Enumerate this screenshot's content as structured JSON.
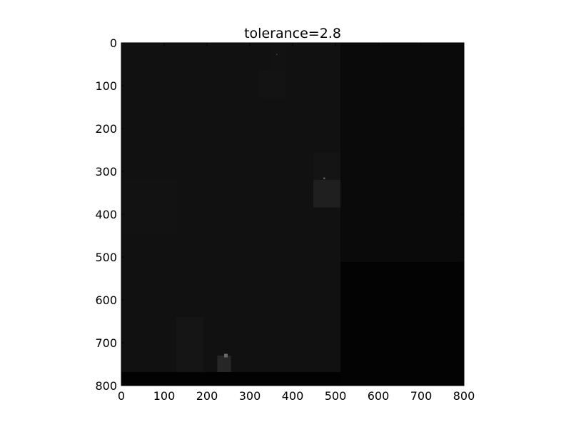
{
  "chart_data": {
    "type": "heatmap",
    "title": "tolerance=2.8",
    "xlabel": "",
    "ylabel": "",
    "xlim": [
      0,
      800
    ],
    "ylim": [
      800,
      0
    ],
    "x_ticks": [
      0,
      100,
      200,
      300,
      400,
      500,
      600,
      700,
      800
    ],
    "y_ticks": [
      0,
      100,
      200,
      300,
      400,
      500,
      600,
      700,
      800
    ],
    "x_tick_labels": [
      "0",
      "100",
      "200",
      "300",
      "400",
      "500",
      "600",
      "700",
      "800"
    ],
    "y_tick_labels": [
      "0",
      "100",
      "200",
      "300",
      "400",
      "500",
      "600",
      "700",
      "800"
    ],
    "colormap": "gray",
    "grid": false,
    "background_gray": "#111111",
    "regions": [
      {
        "name": "left-block",
        "x": [
          0,
          512
        ],
        "y": [
          0,
          768
        ],
        "color": "#111111"
      },
      {
        "name": "bottom-strip",
        "x": [
          0,
          512
        ],
        "y": [
          768,
          800
        ],
        "color": "#020202"
      },
      {
        "name": "upper-right-block",
        "x": [
          512,
          800
        ],
        "y": [
          0,
          512
        ],
        "color": "#0a0a0a"
      },
      {
        "name": "lower-right-block",
        "x": [
          512,
          800
        ],
        "y": [
          512,
          800
        ],
        "color": "#030303"
      },
      {
        "name": "faint-patch-top",
        "x": [
          320,
          384
        ],
        "y": [
          64,
          128
        ],
        "color": "#131313"
      },
      {
        "name": "faint-column-top",
        "x": [
          352,
          384
        ],
        "y": [
          0,
          64
        ],
        "color": "#121212"
      },
      {
        "name": "faint-patch-mid",
        "x": [
          448,
          512
        ],
        "y": [
          256,
          320
        ],
        "color": "#141414"
      },
      {
        "name": "mid-right-patch",
        "x": [
          448,
          512
        ],
        "y": [
          320,
          384
        ],
        "color": "#1f1f1f"
      },
      {
        "name": "faint-left-upper",
        "x": [
          0,
          128
        ],
        "y": [
          320,
          448
        ],
        "color": "#121212"
      },
      {
        "name": "faint-patch-bottom-left",
        "x": [
          128,
          192
        ],
        "y": [
          640,
          768
        ],
        "color": "#151515"
      },
      {
        "name": "bottom-patch",
        "x": [
          224,
          256
        ],
        "y": [
          730,
          768
        ],
        "color": "#262626"
      },
      {
        "name": "bottom-speck",
        "x": [
          240,
          248
        ],
        "y": [
          726,
          734
        ],
        "color": "#6a6a6a"
      },
      {
        "name": "mid-speck",
        "x": [
          472,
          476
        ],
        "y": [
          314,
          318
        ],
        "color": "#5a5a5a"
      },
      {
        "name": "top-speck",
        "x": [
          362,
          364
        ],
        "y": [
          26,
          28
        ],
        "color": "#4a4a4a"
      }
    ]
  }
}
